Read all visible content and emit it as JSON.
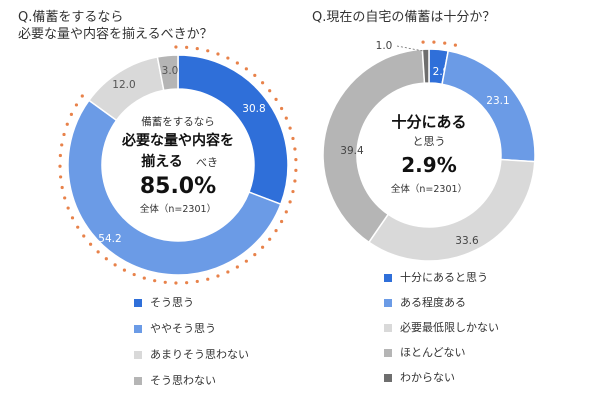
{
  "chart_data": [
    {
      "type": "pie",
      "title": "Q.備蓄をするなら\n必要な量や内容を揃えるべきか？",
      "title_lines": [
        "Q.備蓄をするなら",
        "必要な量や内容を揃えるべきか？"
      ],
      "center": {
        "line1": "備蓄をするなら",
        "line2": "必要な量や内容を",
        "line3a": "揃える",
        "line3b": "べき",
        "value": "85.0%",
        "n": "全体（n=2301）"
      },
      "slices": [
        {
          "label": "そう思う",
          "value": 30.8,
          "color": "#2f6fd9"
        },
        {
          "label": "ややそう思う",
          "value": 54.2,
          "color": "#6b9be6"
        },
        {
          "label": "あまりそう思わない",
          "value": 12.0,
          "color": "#d9d9d9"
        },
        {
          "label": "そう思わない",
          "value": 3.0,
          "color": "#b5b5b5"
        }
      ],
      "value_labels": [
        "30.8",
        "54.2",
        "12.0",
        "3.0"
      ]
    },
    {
      "type": "pie",
      "title": "Q.現在の自宅の備蓄は十分か？",
      "center": {
        "line1": "十分にある",
        "line2": "と思う",
        "value": "2.9%",
        "n": "全体（n=2301）"
      },
      "slices": [
        {
          "label": "十分にあると思う",
          "value": 2.9,
          "color": "#2f6fd9"
        },
        {
          "label": "ある程度ある",
          "value": 23.1,
          "color": "#6b9be6"
        },
        {
          "label": "必要最低限しかない",
          "value": 33.6,
          "color": "#d9d9d9"
        },
        {
          "label": "ほとんどない",
          "value": 39.4,
          "color": "#b5b5b5"
        },
        {
          "label": "わからない",
          "value": 1.0,
          "color": "#6e6e6e"
        }
      ],
      "value_labels": [
        "2.9",
        "23.1",
        "33.6",
        "39.4",
        "1.0"
      ]
    }
  ],
  "colors": {
    "dots": "#e8824a",
    "center_text": "#111111"
  }
}
